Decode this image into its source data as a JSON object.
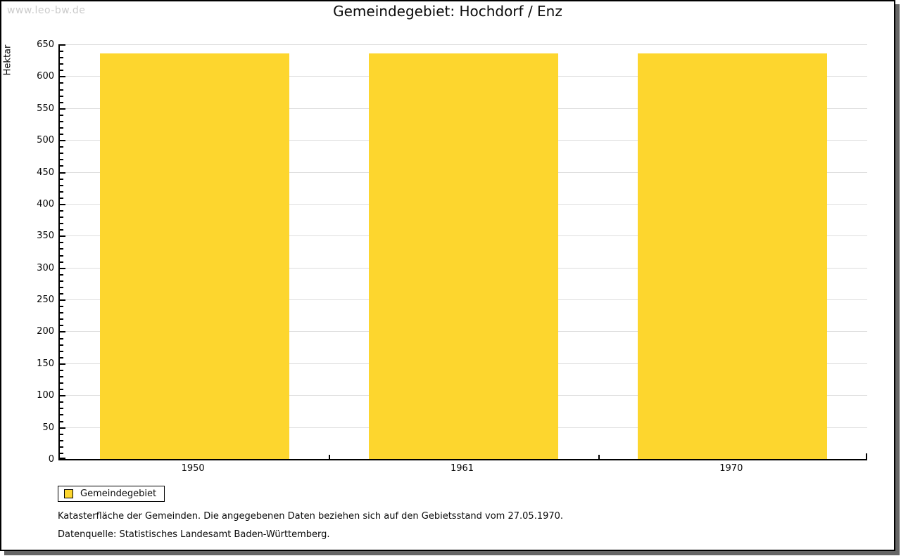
{
  "watermark": "www.leo-bw.de",
  "title": "Gemeindegebiet: Hochdorf / Enz",
  "chart_data": {
    "type": "bar",
    "categories": [
      "1950",
      "1961",
      "1970"
    ],
    "series": [
      {
        "name": "Gemeindegebiet",
        "color": "#FDD62E",
        "values": [
          636,
          636,
          636
        ]
      }
    ],
    "title": "Gemeindegebiet: Hochdorf / Enz",
    "xlabel": "",
    "ylabel": "Hektar",
    "ylim": [
      0,
      650
    ],
    "ytick_major": 50,
    "ytick_minor": 10,
    "grid": "horizontal-major",
    "legend_position": "bottom-left"
  },
  "legend": {
    "items": [
      {
        "label": "Gemeindegebiet",
        "color": "#FDD62E"
      }
    ]
  },
  "captions": {
    "line1": "Katasterfläche der Gemeinden. Die angegebenen Daten beziehen sich auf den Gebietsstand vom 27.05.1970.",
    "line2": "Datenquelle: Statistisches Landesamt Baden-Württemberg."
  },
  "colors": {
    "bar": "#FDD62E",
    "gridline": "#DDDDDD",
    "axis": "#000000",
    "watermark": "#CBCBCB",
    "shadow": "#666666"
  }
}
